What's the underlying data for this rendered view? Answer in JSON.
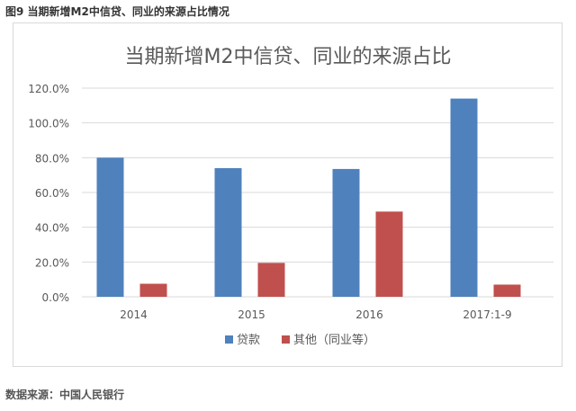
{
  "figure_caption": "图9 当期新增M2中信贷、同业的来源占比情况",
  "source_note": "数据来源：中国人民银行",
  "chart_data": {
    "type": "bar",
    "title": "当期新增M2中信贷、同业的来源占比",
    "categories": [
      "2014",
      "2015",
      "2016",
      "2017:1-9"
    ],
    "series": [
      {
        "name": "贷款",
        "color": "#4f81bd",
        "values": [
          80.0,
          74.0,
          73.5,
          114.0
        ]
      },
      {
        "name": "其他（同业等）",
        "color": "#c0504d",
        "values": [
          7.5,
          19.5,
          49.0,
          7.0
        ]
      }
    ],
    "ylim": [
      0,
      120
    ],
    "ytick_step": 20,
    "ytick_labels": [
      "0.0%",
      "20.0%",
      "40.0%",
      "60.0%",
      "80.0%",
      "100.0%",
      "120.0%"
    ],
    "grid": true,
    "legend_position": "bottom"
  }
}
